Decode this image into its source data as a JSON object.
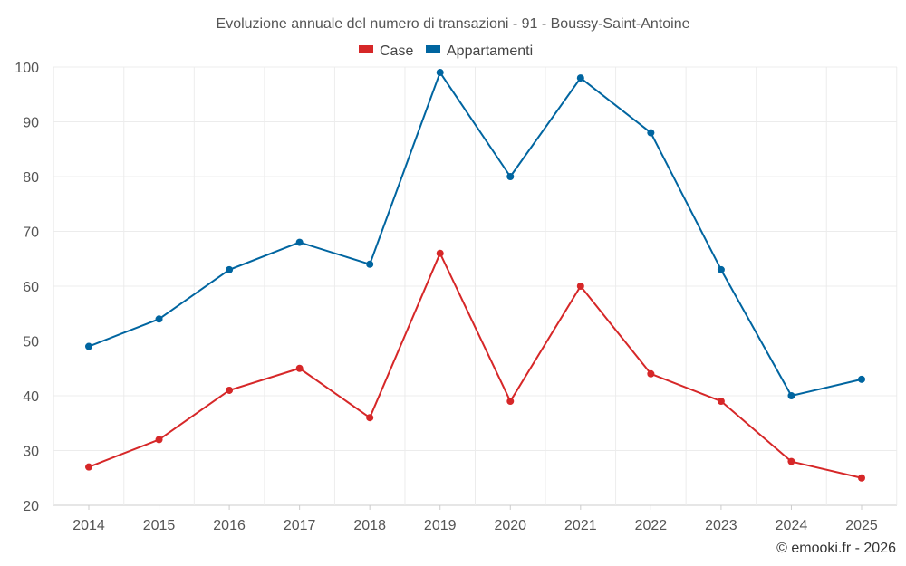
{
  "chart_data": {
    "type": "line",
    "title": "Evoluzione annuale del numero di transazioni - 91 - Boussy-Saint-Antoine",
    "categories": [
      "2014",
      "2015",
      "2016",
      "2017",
      "2018",
      "2019",
      "2020",
      "2021",
      "2022",
      "2023",
      "2024",
      "2025"
    ],
    "series": [
      {
        "name": "Case",
        "color": "#d62728",
        "values": [
          27,
          32,
          41,
          45,
          36,
          66,
          39,
          60,
          44,
          39,
          28,
          25
        ]
      },
      {
        "name": "Appartamenti",
        "color": "#0065a0",
        "values": [
          49,
          54,
          63,
          68,
          64,
          99,
          80,
          98,
          88,
          63,
          40,
          43
        ]
      }
    ],
    "ylim": [
      20,
      100
    ],
    "yticks": [
      20,
      30,
      40,
      50,
      60,
      70,
      80,
      90,
      100
    ],
    "grid": true,
    "legend_position": "top-center",
    "xlabel": "",
    "ylabel": ""
  },
  "credit": "© emooki.fr - 2026"
}
